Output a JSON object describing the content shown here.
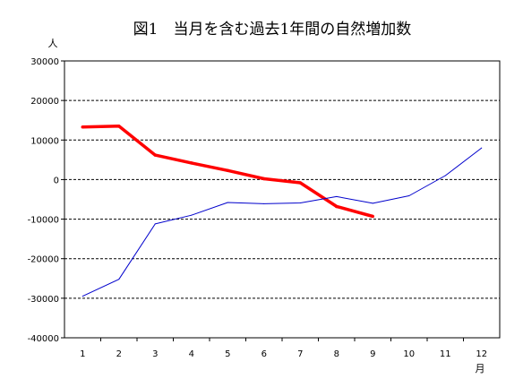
{
  "chart_data": {
    "type": "line",
    "title": "図1　当月を含む過去1年間の自然増加数",
    "y_unit_label": "人",
    "x_unit_label": "月",
    "categories": [
      "1",
      "2",
      "3",
      "4",
      "5",
      "6",
      "7",
      "8",
      "9",
      "10",
      "11",
      "12"
    ],
    "ylim": [
      -40000,
      30000
    ],
    "yticks": [
      30000,
      20000,
      10000,
      0,
      -10000,
      -20000,
      -30000,
      -40000
    ],
    "ytick_labels": [
      "30000",
      "20000",
      "10000",
      "0",
      "-10000",
      "-20000",
      "-30000",
      "-40000"
    ],
    "grid": true,
    "legend": "none",
    "series": [
      {
        "color": "#ff0000",
        "line": "thick",
        "values": [
          13300,
          13500,
          6200,
          4200,
          2300,
          200,
          -800,
          -6800,
          -9300,
          null,
          null,
          null
        ]
      },
      {
        "color": "#0000cc",
        "line": "thin",
        "values": [
          -29500,
          -25200,
          -11200,
          -9000,
          -5800,
          -6100,
          -5900,
          -4300,
          -6000,
          -4100,
          1000,
          8000
        ]
      }
    ]
  }
}
